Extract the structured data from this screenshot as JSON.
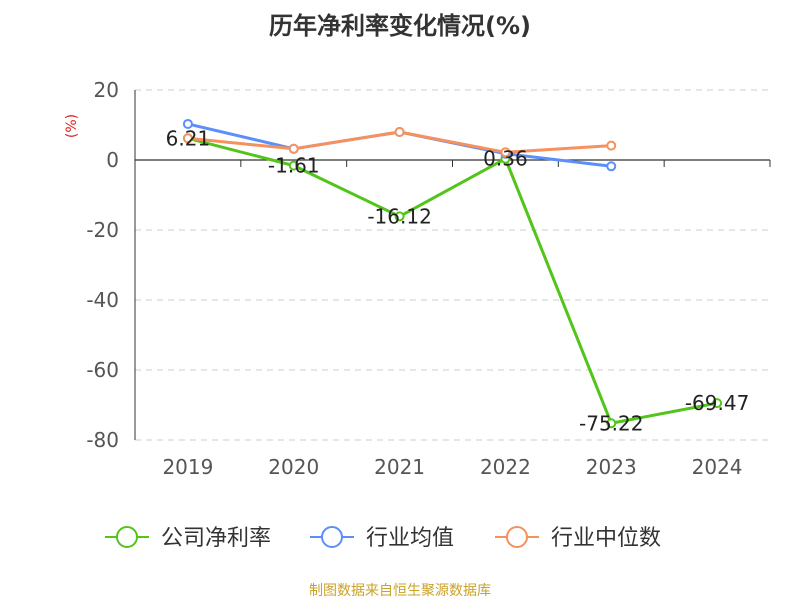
{
  "chart_data": {
    "type": "line",
    "title": "历年净利率变化情况(%)",
    "ylabel": "(%)",
    "xlabel": "",
    "categories": [
      "2019",
      "2020",
      "2021",
      "2022",
      "2023",
      "2024"
    ],
    "ylim": [
      -80,
      20
    ],
    "yticks": [
      20,
      0,
      -20,
      -40,
      -60,
      -80
    ],
    "grid": true,
    "legend_position": "bottom",
    "series": [
      {
        "name": "公司净利率",
        "color": "#52c41a",
        "values": [
          6.21,
          -1.61,
          -16.12,
          0.36,
          -75.22,
          -69.47
        ],
        "show_labels": true
      },
      {
        "name": "行业均值",
        "color": "#5b8ff9",
        "values": [
          10.3,
          3.2,
          8.0,
          1.8,
          -1.8,
          null
        ],
        "show_labels": false
      },
      {
        "name": "行业中位数",
        "color": "#f6905d",
        "values": [
          6.2,
          3.2,
          8.0,
          2.2,
          4.1,
          null
        ],
        "show_labels": false
      }
    ]
  },
  "source_text": "制图数据来自恒生聚源数据库",
  "colors": {
    "axis": "#333333",
    "grid": "#cccccc",
    "ylabel": "#e02020",
    "source": "#c9a227"
  }
}
